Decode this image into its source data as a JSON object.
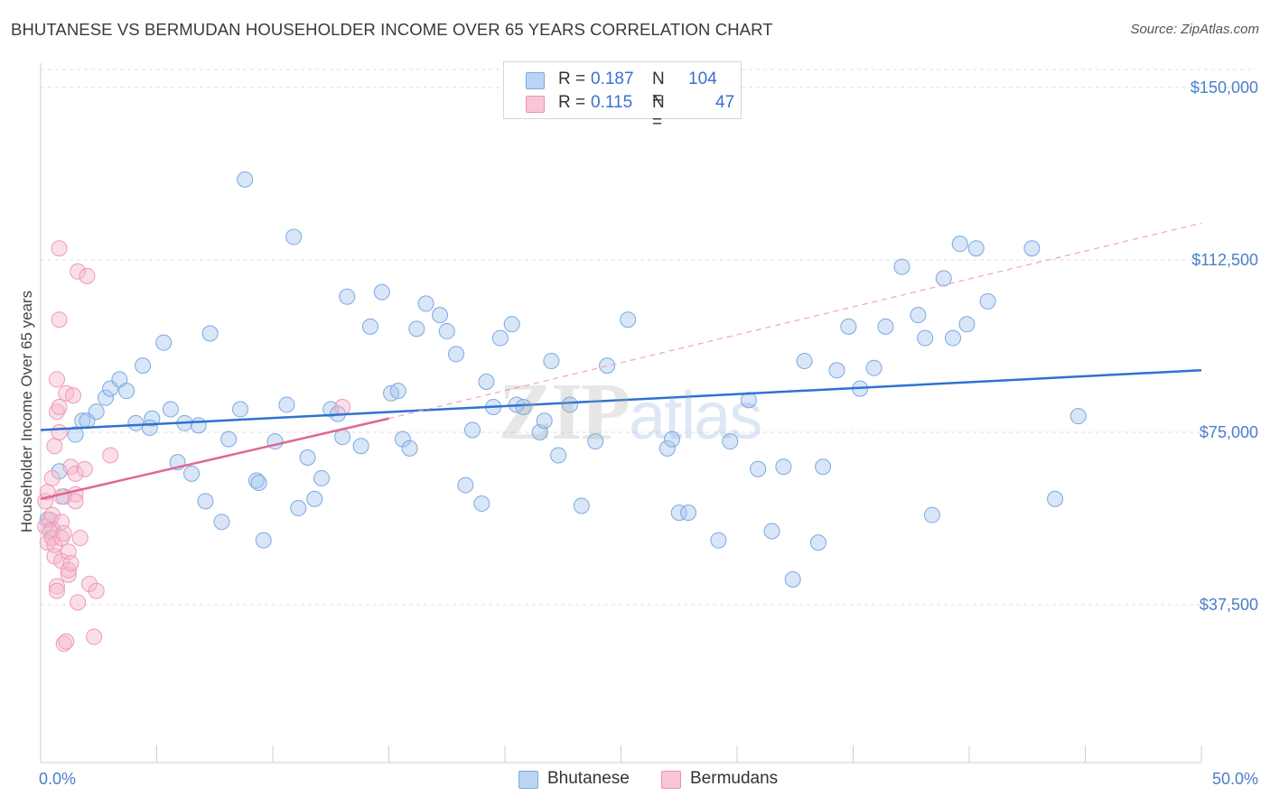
{
  "header": {
    "title": "BHUTANESE VS BERMUDAN HOUSEHOLDER INCOME OVER 65 YEARS CORRELATION CHART",
    "source": "Source: ZipAtlas.com"
  },
  "watermark": {
    "zip": "ZIP",
    "atlas": "atlas"
  },
  "legend": {
    "rows": [
      {
        "r_label": "R =",
        "r_value": "0.187",
        "n_label": "N =",
        "n_value": "104",
        "color": "#a9c8ef"
      },
      {
        "r_label": "R =",
        "r_value": "0.115",
        "n_label": "N =",
        "n_value": "47",
        "color": "#f6b8cb"
      }
    ]
  },
  "bottom_legend": [
    {
      "label": "Bhutanese",
      "color": "#a9c8ef"
    },
    {
      "label": "Bermudans",
      "color": "#f6b8cb"
    }
  ],
  "chart_data": {
    "type": "scatter",
    "title": "BHUTANESE VS BERMUDAN HOUSEHOLDER INCOME OVER 65 YEARS CORRELATION CHART",
    "ylabel": "Householder Income Over 65 years",
    "xlabel": "",
    "xlim": [
      0,
      50
    ],
    "ylim": [
      0,
      155000
    ],
    "x_tick_labels": [
      {
        "value": 0,
        "label": "0.0%"
      },
      {
        "value": 50,
        "label": "50.0%"
      }
    ],
    "y_tick_labels": [
      {
        "value": 37500,
        "label": "$37,500"
      },
      {
        "value": 75000,
        "label": "$75,000"
      },
      {
        "value": 112500,
        "label": "$112,500"
      },
      {
        "value": 150000,
        "label": "$150,000"
      }
    ],
    "grid": true,
    "legend_position": "top-center",
    "colors": {
      "bhutanese": "#a9c8ef",
      "bhutanese_line": "#2f72cf",
      "bermudans": "#f6b8cb",
      "bermudans_line": "#e06691",
      "grid": "#dcdcdc"
    },
    "series": [
      {
        "name": "Bhutanese",
        "points": [
          [
            0.8,
            66500
          ],
          [
            1.0,
            61000
          ],
          [
            0.5,
            54000
          ],
          [
            0.3,
            56000
          ],
          [
            1.5,
            74500
          ],
          [
            1.8,
            77500
          ],
          [
            2.0,
            77500
          ],
          [
            2.4,
            79500
          ],
          [
            2.8,
            82500
          ],
          [
            3.0,
            84500
          ],
          [
            3.4,
            86500
          ],
          [
            3.7,
            84000
          ],
          [
            4.1,
            77000
          ],
          [
            4.4,
            89500
          ],
          [
            4.8,
            78000
          ],
          [
            4.7,
            76000
          ],
          [
            5.3,
            94500
          ],
          [
            5.6,
            80000
          ],
          [
            5.9,
            68500
          ],
          [
            6.2,
            77000
          ],
          [
            6.5,
            66000
          ],
          [
            6.8,
            76500
          ],
          [
            7.1,
            60000
          ],
          [
            7.3,
            96500
          ],
          [
            7.8,
            55500
          ],
          [
            8.1,
            73500
          ],
          [
            8.6,
            80000
          ],
          [
            8.8,
            130000
          ],
          [
            9.3,
            64500
          ],
          [
            9.4,
            64000
          ],
          [
            9.6,
            51500
          ],
          [
            10.1,
            73000
          ],
          [
            10.6,
            81000
          ],
          [
            10.9,
            117500
          ],
          [
            11.1,
            58500
          ],
          [
            11.5,
            69500
          ],
          [
            11.8,
            60500
          ],
          [
            12.1,
            65000
          ],
          [
            12.5,
            80000
          ],
          [
            12.8,
            79000
          ],
          [
            13.0,
            74000
          ],
          [
            13.2,
            104500
          ],
          [
            13.8,
            72000
          ],
          [
            14.2,
            98000
          ],
          [
            14.7,
            105500
          ],
          [
            15.1,
            83500
          ],
          [
            15.4,
            84000
          ],
          [
            15.6,
            73500
          ],
          [
            15.9,
            71500
          ],
          [
            16.2,
            97500
          ],
          [
            16.6,
            103000
          ],
          [
            17.2,
            100500
          ],
          [
            17.5,
            97000
          ],
          [
            17.9,
            92000
          ],
          [
            18.3,
            63500
          ],
          [
            18.6,
            75500
          ],
          [
            19.0,
            59500
          ],
          [
            19.2,
            86000
          ],
          [
            19.5,
            80500
          ],
          [
            19.8,
            95500
          ],
          [
            20.3,
            98500
          ],
          [
            20.5,
            81000
          ],
          [
            20.8,
            80500
          ],
          [
            21.5,
            75000
          ],
          [
            21.7,
            77500
          ],
          [
            22.0,
            90500
          ],
          [
            22.3,
            70000
          ],
          [
            22.8,
            81000
          ],
          [
            23.3,
            59000
          ],
          [
            23.9,
            73000
          ],
          [
            24.4,
            89500
          ],
          [
            25.3,
            99500
          ],
          [
            27.0,
            71500
          ],
          [
            27.2,
            73500
          ],
          [
            27.5,
            57500
          ],
          [
            27.9,
            57500
          ],
          [
            29.2,
            51500
          ],
          [
            29.7,
            73000
          ],
          [
            30.5,
            82000
          ],
          [
            30.9,
            67000
          ],
          [
            31.5,
            53500
          ],
          [
            32.0,
            67500
          ],
          [
            32.4,
            43000
          ],
          [
            32.9,
            90500
          ],
          [
            33.5,
            51000
          ],
          [
            33.7,
            67500
          ],
          [
            34.3,
            88500
          ],
          [
            34.8,
            98000
          ],
          [
            35.3,
            84500
          ],
          [
            35.9,
            89000
          ],
          [
            36.4,
            98000
          ],
          [
            37.1,
            111000
          ],
          [
            37.8,
            100500
          ],
          [
            38.1,
            95500
          ],
          [
            38.4,
            57000
          ],
          [
            38.9,
            108500
          ],
          [
            39.3,
            95500
          ],
          [
            39.6,
            116000
          ],
          [
            39.9,
            98500
          ],
          [
            40.3,
            115000
          ],
          [
            40.8,
            103500
          ],
          [
            42.7,
            115000
          ],
          [
            43.7,
            60500
          ],
          [
            44.7,
            78500
          ]
        ],
        "trend": [
          [
            0,
            75500
          ],
          [
            50,
            88500
          ]
        ]
      },
      {
        "name": "Bermudans",
        "points": [
          [
            0.2,
            60000
          ],
          [
            0.2,
            54500
          ],
          [
            0.3,
            51000
          ],
          [
            0.3,
            62000
          ],
          [
            0.4,
            56000
          ],
          [
            0.4,
            53500
          ],
          [
            0.5,
            52000
          ],
          [
            0.5,
            57000
          ],
          [
            0.5,
            65000
          ],
          [
            0.6,
            72000
          ],
          [
            0.6,
            48000
          ],
          [
            0.6,
            50500
          ],
          [
            0.7,
            41500
          ],
          [
            0.7,
            40500
          ],
          [
            0.7,
            79500
          ],
          [
            0.7,
            86500
          ],
          [
            0.8,
            99500
          ],
          [
            0.8,
            115000
          ],
          [
            0.8,
            75000
          ],
          [
            0.8,
            80500
          ],
          [
            0.9,
            61000
          ],
          [
            0.9,
            55500
          ],
          [
            0.9,
            52000
          ],
          [
            0.9,
            47000
          ],
          [
            1.0,
            53000
          ],
          [
            1.0,
            29000
          ],
          [
            1.1,
            29500
          ],
          [
            1.1,
            83500
          ],
          [
            1.2,
            44000
          ],
          [
            1.2,
            45000
          ],
          [
            1.2,
            49000
          ],
          [
            1.3,
            67500
          ],
          [
            1.3,
            46500
          ],
          [
            1.4,
            83000
          ],
          [
            1.5,
            61500
          ],
          [
            1.5,
            60000
          ],
          [
            1.5,
            66000
          ],
          [
            1.6,
            110000
          ],
          [
            1.6,
            38000
          ],
          [
            1.7,
            52000
          ],
          [
            1.9,
            67000
          ],
          [
            2.0,
            109000
          ],
          [
            2.1,
            42000
          ],
          [
            2.3,
            30500
          ],
          [
            2.4,
            40500
          ],
          [
            3.0,
            70000
          ],
          [
            13.0,
            80500
          ]
        ],
        "trend": [
          [
            0,
            60500
          ],
          [
            15,
            78000
          ]
        ],
        "trend_extended": [
          [
            15,
            78000
          ],
          [
            50,
            120500
          ]
        ]
      }
    ]
  }
}
